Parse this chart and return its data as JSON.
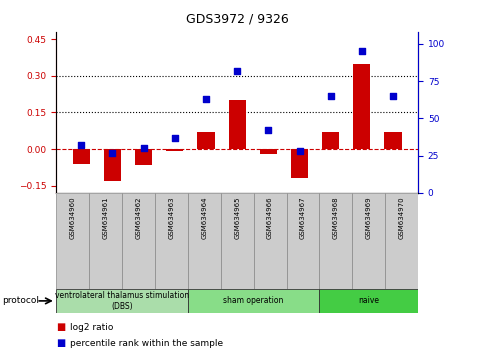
{
  "title": "GDS3972 / 9326",
  "samples": [
    "GSM634960",
    "GSM634961",
    "GSM634962",
    "GSM634963",
    "GSM634964",
    "GSM634965",
    "GSM634966",
    "GSM634967",
    "GSM634968",
    "GSM634969",
    "GSM634970"
  ],
  "log2_ratio": [
    -0.06,
    -0.13,
    -0.065,
    -0.01,
    0.07,
    0.2,
    -0.02,
    -0.12,
    0.07,
    0.35,
    0.07
  ],
  "percentile_rank": [
    32,
    27,
    30,
    37,
    63,
    82,
    42,
    28,
    65,
    95,
    65
  ],
  "groups": [
    {
      "label": "ventrolateral thalamus stimulation\n(DBS)",
      "start": 0,
      "end": 3,
      "color": "#aaddaa"
    },
    {
      "label": "sham operation",
      "start": 4,
      "end": 7,
      "color": "#88dd88"
    },
    {
      "label": "naive",
      "start": 8,
      "end": 10,
      "color": "#44cc44"
    }
  ],
  "bar_color": "#cc0000",
  "dot_color": "#0000cc",
  "ylim_left": [
    -0.18,
    0.48
  ],
  "ylim_right": [
    0,
    108
  ],
  "yticks_left": [
    -0.15,
    0.0,
    0.15,
    0.3,
    0.45
  ],
  "yticks_right": [
    0,
    25,
    50,
    75,
    100
  ],
  "hlines_dotted": [
    0.15,
    0.3
  ],
  "hline_zero_color": "#cc0000",
  "background_color": "#ffffff"
}
